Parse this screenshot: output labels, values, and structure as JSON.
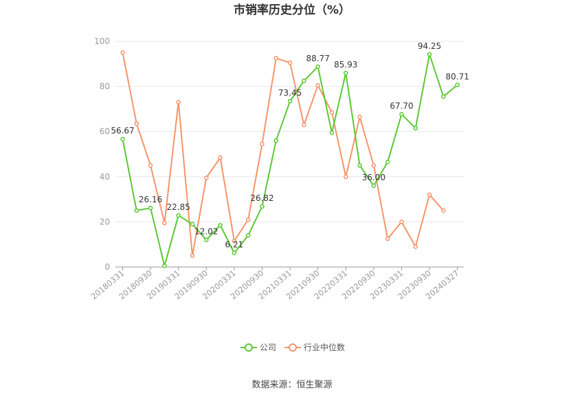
{
  "chart_data": {
    "type": "line",
    "title": "市销率历史分位（%）",
    "source_note": "数据来源：恒生聚源",
    "ylim": [
      0,
      100
    ],
    "y_ticks": [
      "0",
      "20",
      "40",
      "60",
      "80",
      "100"
    ],
    "x_tick_labels": [
      "20180331",
      "20180930",
      "20190331",
      "20190930",
      "20200331",
      "20200930",
      "20210331",
      "20210930",
      "20220331",
      "20220930",
      "20230331",
      "20230930",
      "20240327"
    ],
    "grid": true,
    "legend_position": "bottom-center",
    "series": [
      {
        "name": "公司",
        "color": "#5ac832",
        "values": [
          56.67,
          25.0,
          26.16,
          0.5,
          22.85,
          19.0,
          12.02,
          18.5,
          6.21,
          14.0,
          26.82,
          56.0,
          73.45,
          82.5,
          88.77,
          59.5,
          85.93,
          45.0,
          36.0,
          46.5,
          67.7,
          61.5,
          94.25,
          75.5,
          80.71
        ],
        "labels": [
          "56.67",
          "",
          "26.16",
          "",
          "22.85",
          "",
          "12.02",
          "",
          "6.21",
          "",
          "26.82",
          "",
          "73.45",
          "",
          "88.77",
          "",
          "85.93",
          "",
          "36.00",
          "",
          "67.70",
          "",
          "94.25",
          "",
          "80.71"
        ]
      },
      {
        "name": "行业中位数",
        "color": "#f4946a",
        "values": [
          95.0,
          63.5,
          45.0,
          19.5,
          73.0,
          5.0,
          39.5,
          48.5,
          11.5,
          21.0,
          54.5,
          92.5,
          90.5,
          63.0,
          80.5,
          68.5,
          40.0,
          66.5,
          45.0,
          12.5,
          20.0,
          9.0,
          32.0,
          25.0,
          null
        ]
      }
    ]
  }
}
